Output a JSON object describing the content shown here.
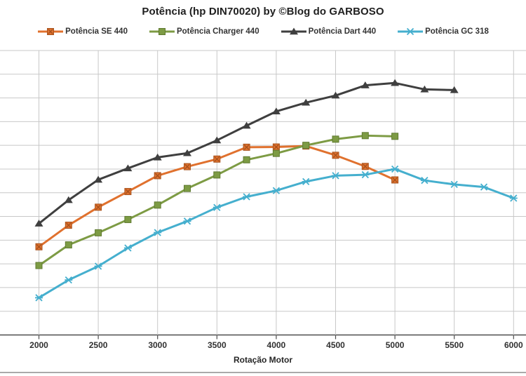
{
  "title": "Potência (hp DIN70020) by ©Blog do GARBOSO",
  "x_axis": {
    "label": "Rotação Motor",
    "tick_labels": [
      "2000",
      "2500",
      "3000",
      "3500",
      "4000",
      "4500",
      "5000",
      "5500",
      "6000"
    ],
    "tick_values": [
      2000,
      2500,
      3000,
      3500,
      4000,
      4500,
      5000,
      5500,
      6000
    ],
    "min": 2000,
    "max": 6000
  },
  "y_axis": {
    "labels_visible": false,
    "gridline_intervals": 12
  },
  "colors": {
    "se_orange": "#E0712E",
    "se_orange_dark": "#A6521D",
    "charger_green": "#7D9B44",
    "charger_green_dark": "#5F7A30",
    "dart_dark": "#3F3F3F",
    "gc_cyan": "#45AFCE",
    "gridline": "#C8C8C8",
    "axis": "#4D4D4D"
  },
  "chart_data": {
    "type": "line",
    "title": "Potência (hp DIN70020) by ©Blog do GARBOSO",
    "xlabel": "Rotação Motor",
    "ylabel": "",
    "xlim": [
      2000,
      6000
    ],
    "x_tick_step": 500,
    "grid": true,
    "legend_position": "top",
    "y_unit_note": "y-axis labels cropped out of frame; values in visible gridline units above x-axis (0 = x-axis, 12 = top gridline)",
    "series": [
      {
        "name": "Potência SE 440",
        "color": "#E0712E",
        "marker": "square-x",
        "x": [
          2000,
          2250,
          2500,
          2750,
          3000,
          3250,
          3500,
          3750,
          4000,
          4250,
          4500,
          4750,
          5000
        ],
        "y": [
          3.72,
          4.63,
          5.39,
          6.05,
          6.72,
          7.1,
          7.42,
          7.92,
          7.93,
          7.97,
          7.58,
          7.11,
          6.54
        ]
      },
      {
        "name": "Potência Charger 440",
        "color": "#7D9B44",
        "marker": "square",
        "x": [
          2000,
          2250,
          2500,
          2750,
          3000,
          3250,
          3500,
          3750,
          4000,
          4250,
          4500,
          4750,
          5000
        ],
        "y": [
          2.93,
          3.8,
          4.31,
          4.87,
          5.48,
          6.18,
          6.75,
          7.39,
          7.66,
          8.0,
          8.26,
          8.41,
          8.38
        ]
      },
      {
        "name": "Potência Dart 440",
        "color": "#3F3F3F",
        "marker": "triangle",
        "x": [
          2000,
          2250,
          2500,
          2750,
          3000,
          3250,
          3500,
          3750,
          4000,
          4250,
          4500,
          4750,
          5000,
          5250,
          5500
        ],
        "y": [
          4.7,
          5.69,
          6.55,
          7.03,
          7.49,
          7.67,
          8.21,
          8.83,
          9.43,
          9.8,
          10.1,
          10.53,
          10.63,
          10.36,
          10.33
        ]
      },
      {
        "name": "Potência GC 318",
        "color": "#45AFCE",
        "marker": "x-star",
        "x": [
          2000,
          2250,
          2500,
          2750,
          3000,
          3250,
          3500,
          3750,
          4000,
          4250,
          4500,
          4750,
          5000,
          5250,
          5500,
          5750,
          6000
        ],
        "y": [
          1.57,
          2.32,
          2.9,
          3.67,
          4.32,
          4.8,
          5.38,
          5.83,
          6.09,
          6.47,
          6.72,
          6.76,
          7.0,
          6.52,
          6.35,
          6.24,
          5.77
        ]
      }
    ]
  }
}
